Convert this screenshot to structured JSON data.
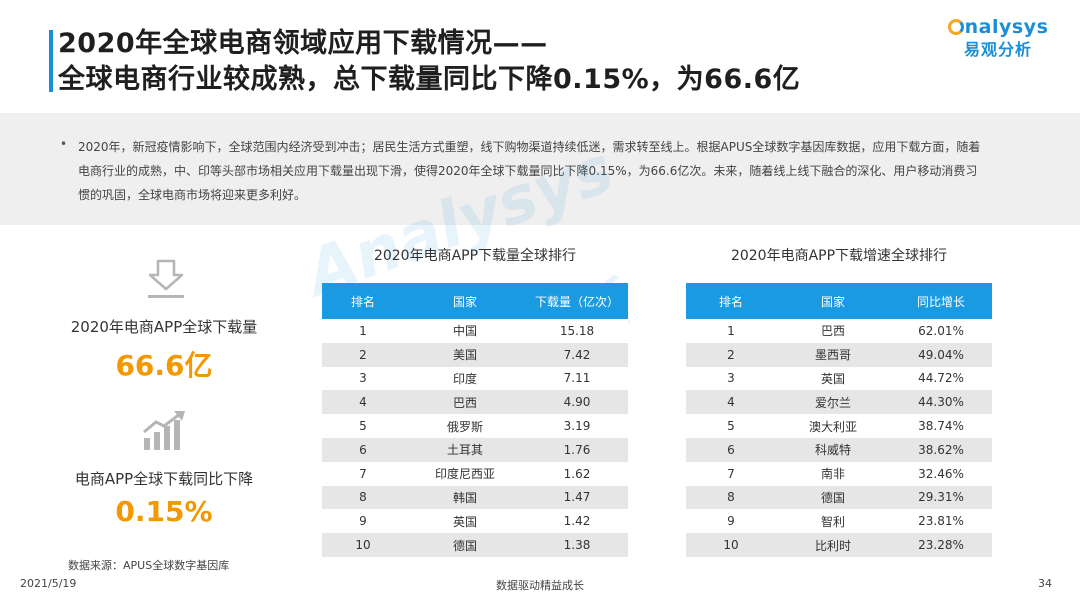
{
  "header": {
    "title_line1": "2020年全球电商领域应用下载情况——",
    "title_line2": "全球电商行业较成熟，总下载量同比下降0.15%，为66.6亿"
  },
  "logo": {
    "en": "nalysys",
    "cn": "易观分析"
  },
  "watermark": {
    "en": "Analysys",
    "cn": "易观分析"
  },
  "summary": {
    "bullet": "•",
    "text": "2020年，新冠疫情影响下，全球范围内经济受到冲击；居民生活方式重塑，线下购物渠道持续低迷，需求转至线上。根据APUS全球数字基因库数据，应用下载方面，随着电商行业的成熟，中、印等头部市场相关应用下载量出现下滑，使得2020年全球下载量同比下降0.15%，为66.6亿次。未来，随着线上线下融合的深化、用户移动消费习惯的巩固，全球电商市场将迎来更多利好。"
  },
  "stats": [
    {
      "label": "2020年电商APP全球下载量",
      "value": "66.6亿",
      "icon": "download-icon"
    },
    {
      "label": "电商APP全球下载同比下降",
      "value": "0.15%",
      "icon": "growth-chart-icon"
    }
  ],
  "download_table": {
    "title": "2020年电商APP下载量全球排行",
    "headers": [
      "排名",
      "国家",
      "下载量（亿次）"
    ],
    "rows": [
      [
        "1",
        "中国",
        "15.18"
      ],
      [
        "2",
        "美国",
        "7.42"
      ],
      [
        "3",
        "印度",
        "7.11"
      ],
      [
        "4",
        "巴西",
        "4.90"
      ],
      [
        "5",
        "俄罗斯",
        "3.19"
      ],
      [
        "6",
        "土耳其",
        "1.76"
      ],
      [
        "7",
        "印度尼西亚",
        "1.62"
      ],
      [
        "8",
        "韩国",
        "1.47"
      ],
      [
        "9",
        "英国",
        "1.42"
      ],
      [
        "10",
        "德国",
        "1.38"
      ]
    ]
  },
  "growth_table": {
    "title": "2020年电商APP下载增速全球排行",
    "headers": [
      "排名",
      "国家",
      "同比增长"
    ],
    "rows": [
      [
        "1",
        "巴西",
        "62.01%"
      ],
      [
        "2",
        "墨西哥",
        "49.04%"
      ],
      [
        "3",
        "英国",
        "44.72%"
      ],
      [
        "4",
        "爱尔兰",
        "44.30%"
      ],
      [
        "5",
        "澳大利亚",
        "38.74%"
      ],
      [
        "6",
        "科威特",
        "38.62%"
      ],
      [
        "7",
        "南非",
        "32.46%"
      ],
      [
        "8",
        "德国",
        "29.31%"
      ],
      [
        "9",
        "智利",
        "23.81%"
      ],
      [
        "10",
        "比利时",
        "23.28%"
      ]
    ]
  },
  "source": "数据来源：APUS全球数字基因库",
  "footer": {
    "date": "2021/5/19",
    "slogan": "数据驱动精益成长",
    "page": "34"
  },
  "colors": {
    "accent": "#1a8fd8",
    "table_header": "#1a9ae0",
    "highlight": "#f39800"
  }
}
